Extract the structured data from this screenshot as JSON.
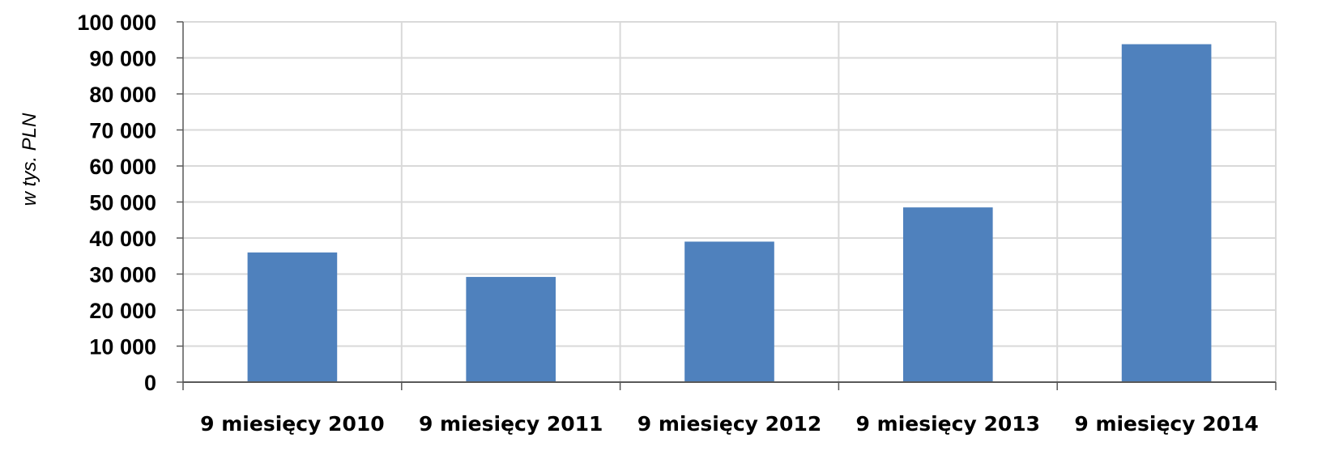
{
  "chart_data": {
    "type": "bar",
    "categories": [
      "9 miesięcy 2010",
      "9 miesięcy 2011",
      "9 miesięcy 2012",
      "9 miesięcy 2013",
      "9 miesięcy 2014"
    ],
    "values": [
      36000,
      29200,
      39000,
      48500,
      93800
    ],
    "title": "",
    "xlabel": "",
    "ylabel": "w tys. PLN",
    "ylim": [
      0,
      100000
    ],
    "yticks": [
      "0",
      "10 000",
      "20 000",
      "30 000",
      "40 000",
      "50 000",
      "60 000",
      "70 000",
      "80 000",
      "90 000",
      "100 000"
    ],
    "grid": true,
    "legend": "none",
    "bar_color": "#4F81BD",
    "grid_color": "#D9D9D9"
  }
}
